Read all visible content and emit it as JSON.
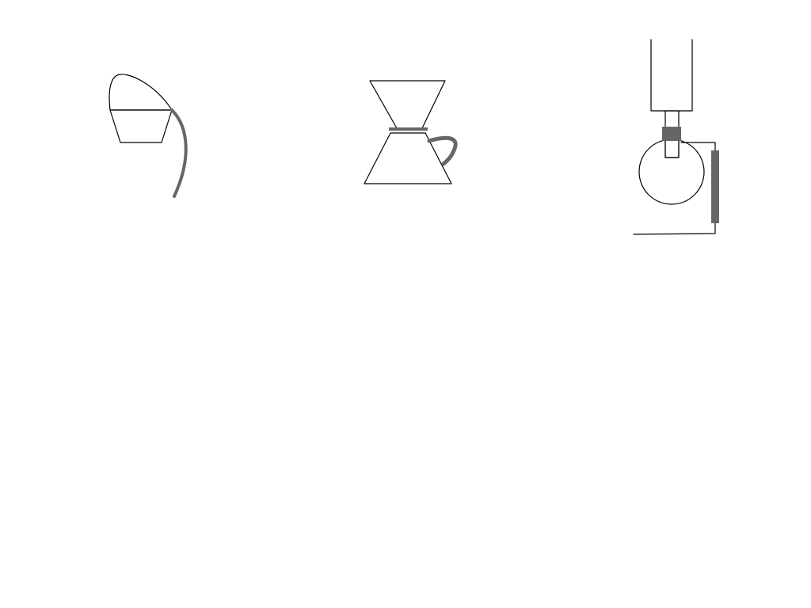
{
  "colors": {
    "background": "#ffffff",
    "outline": "#000000",
    "accent": "#666666"
  },
  "drawings": [
    {
      "name": "pouring-cup-drawing",
      "parts": [
        "cup-outline",
        "pour-stream"
      ]
    },
    {
      "name": "funnel-jug-drawing",
      "parts": [
        "funnel-outline",
        "funnel-band",
        "jug-outline",
        "jug-handle"
      ]
    },
    {
      "name": "round-flask-apparatus-drawing",
      "parts": [
        "upper-tube",
        "neck-tube",
        "neck-clamp",
        "flask-bulb",
        "side-wire",
        "side-bar",
        "base-wire"
      ]
    }
  ]
}
